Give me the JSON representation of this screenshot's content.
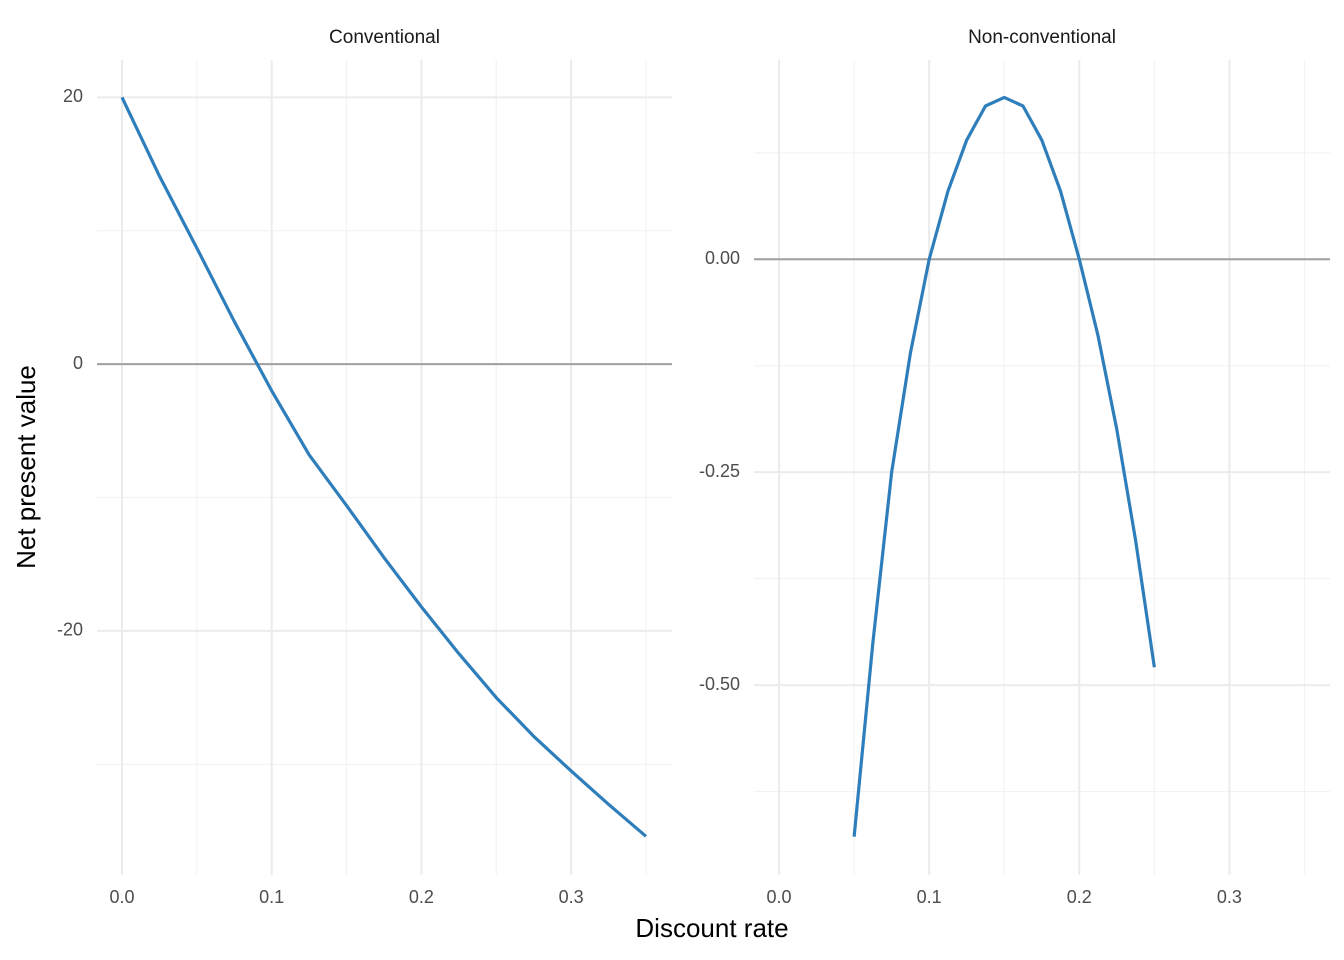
{
  "chart_data": {
    "type": "line",
    "xlabel": "Discount rate",
    "ylabel": "Net present value",
    "grid": true,
    "facets": [
      {
        "title": "Conventional",
        "color": "#2e7ebb",
        "hline": 0,
        "x": [
          0,
          0.025,
          0.05,
          0.075,
          0.1,
          0.125,
          0.15,
          0.175,
          0.2,
          0.225,
          0.25,
          0.275,
          0.3,
          0.325,
          0.35
        ],
        "values": [
          20,
          14.1,
          8.7,
          3.2,
          -2.0,
          -6.8,
          -10.6,
          -14.5,
          -18.2,
          -21.7,
          -25.0,
          -27.9,
          -30.5,
          -33.0,
          -35.4
        ],
        "xlim": [
          -0.0167,
          0.3674
        ],
        "ylim": [
          -38.3,
          22.8
        ],
        "xticks": [
          {
            "value": 0,
            "label": "0.0"
          },
          0.1,
          0.2,
          0.3
        ],
        "yticks": [
          -20,
          0,
          20
        ]
      },
      {
        "title": "Non-conventional",
        "color": "#2e7ebb",
        "hline": 0,
        "x": [
          0.05,
          0.0625,
          0.075,
          0.0875,
          0.1,
          0.1125,
          0.125,
          0.1375,
          0.15,
          0.1625,
          0.175,
          0.1875,
          0.2,
          0.2125,
          0.225,
          0.2375,
          0.25
        ],
        "values": [
          -0.678,
          -0.45,
          -0.25,
          -0.11,
          0,
          0.08,
          0.14,
          0.18,
          0.19,
          0.18,
          0.14,
          0.08,
          0,
          -0.09,
          -0.2,
          -0.33,
          -0.479
        ],
        "xlim": [
          -0.0167,
          0.367
        ],
        "ylim": [
          -0.723,
          0.234
        ],
        "xticks": [
          {
            "value": 0,
            "label": "0.0"
          },
          0.1,
          0.2,
          0.3
        ],
        "yticks": [
          {
            "value": -0.5,
            "label": "-0.50"
          },
          {
            "value": -0.25,
            "label": "-0.25"
          },
          {
            "value": 0,
            "label": "0.00"
          }
        ]
      }
    ]
  }
}
